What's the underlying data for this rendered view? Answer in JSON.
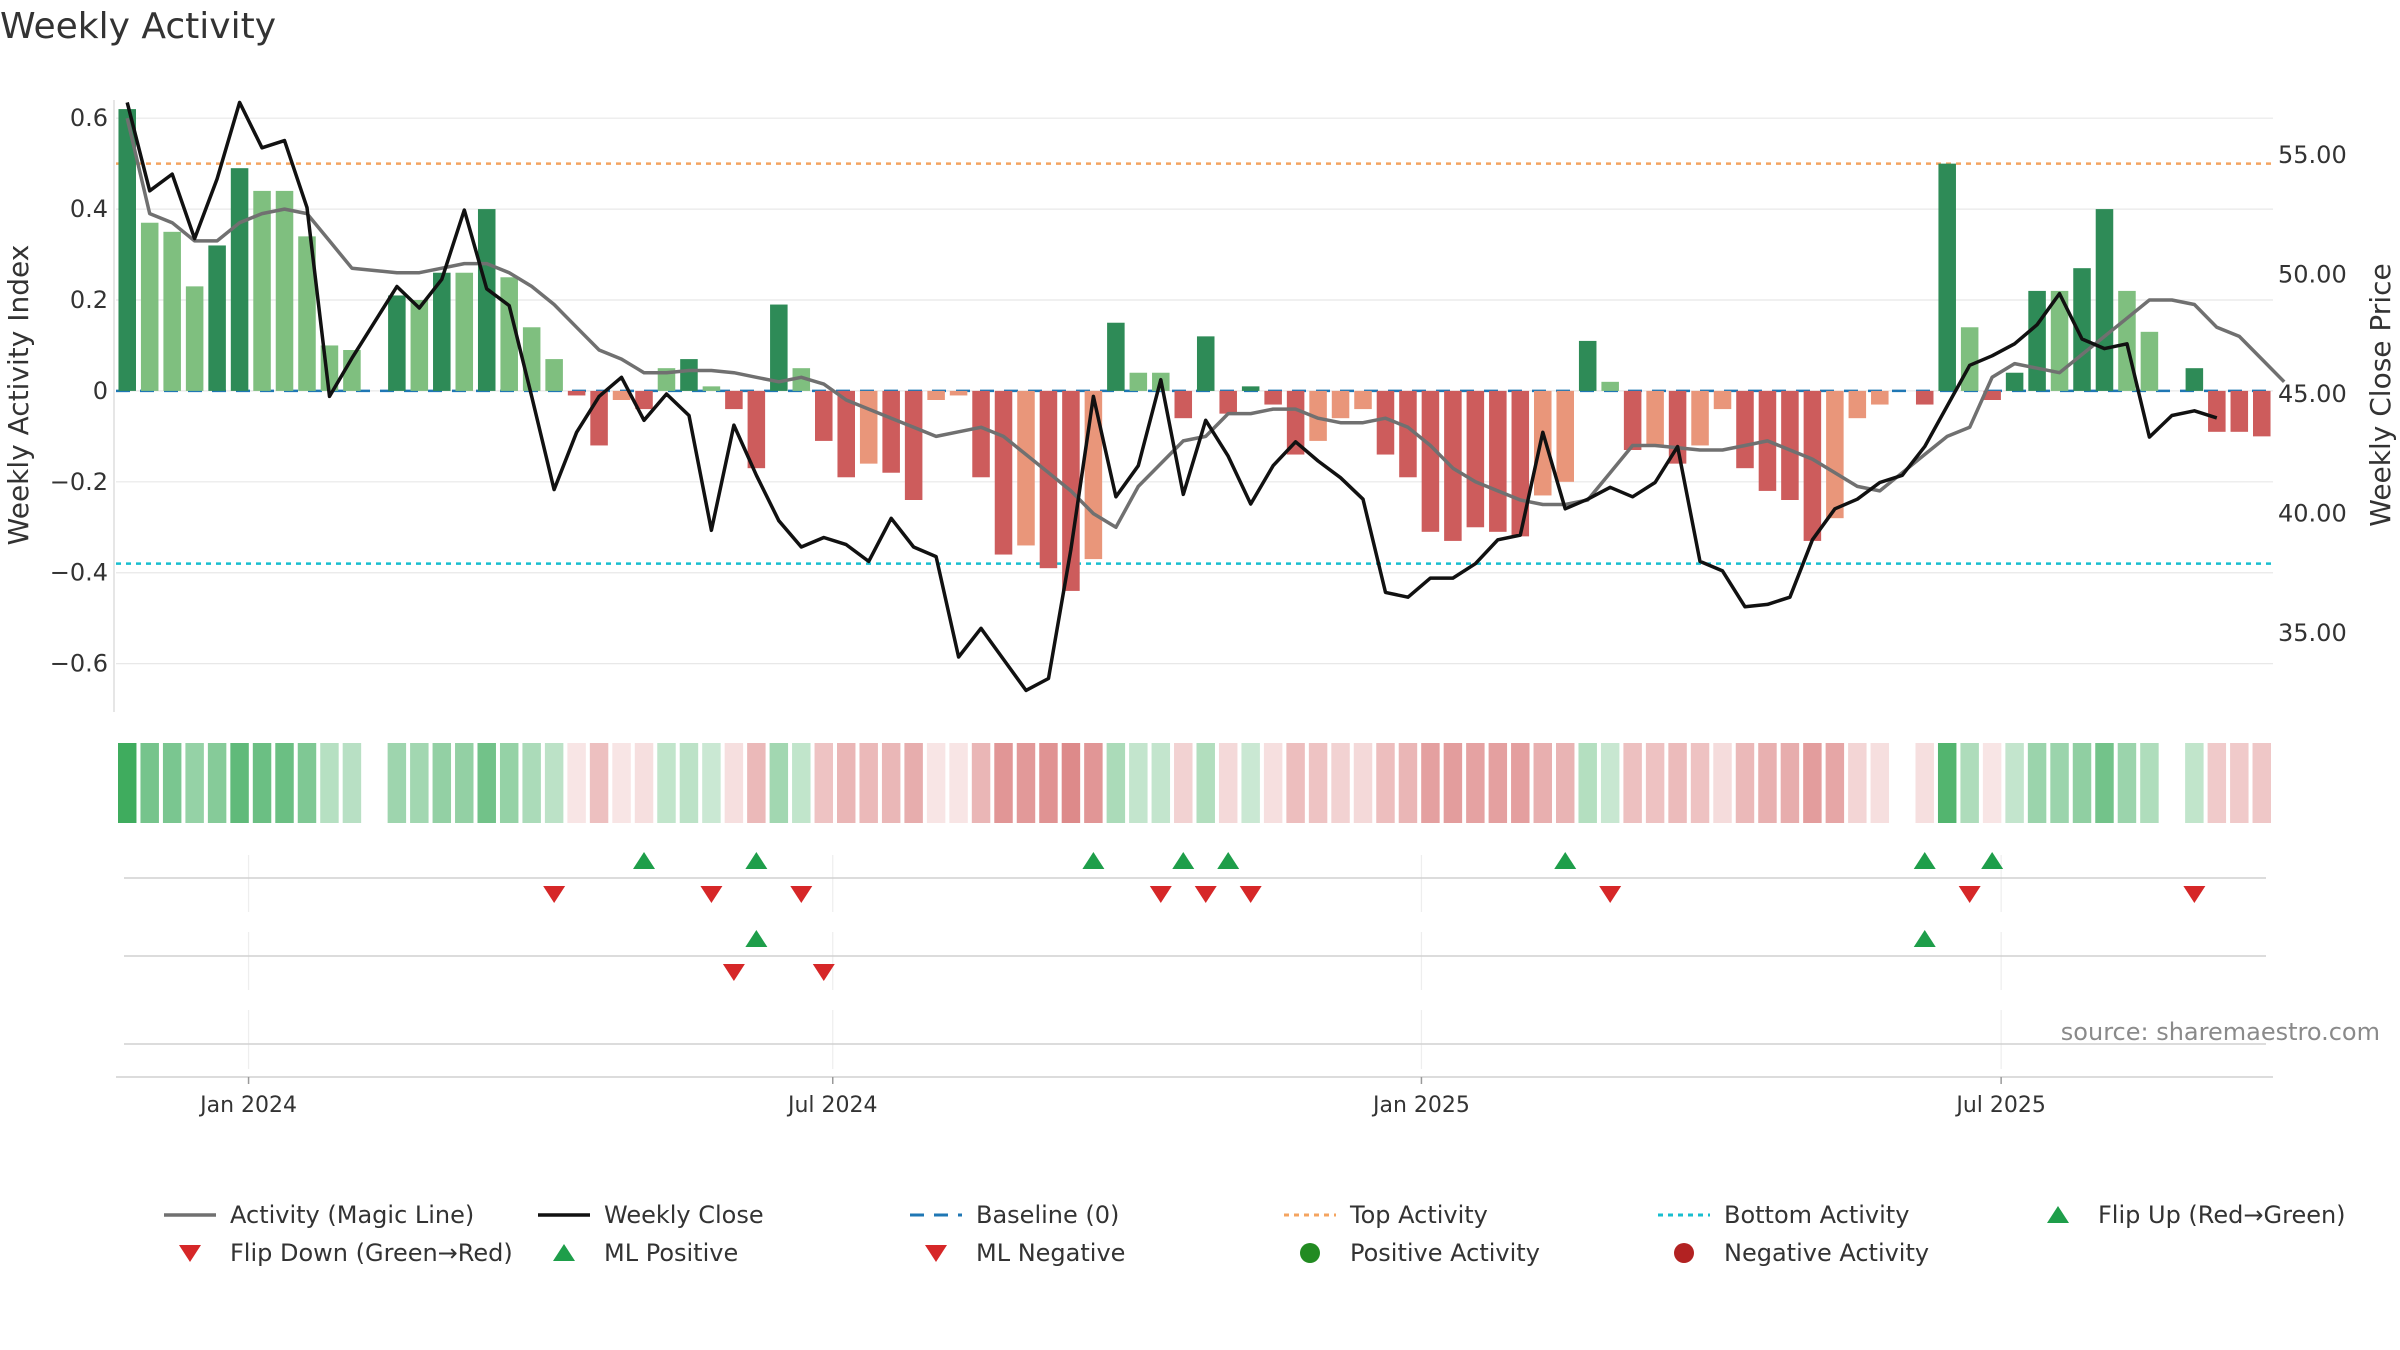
{
  "title": "Weekly Activity",
  "colors": {
    "strong_green": "#2e8b57",
    "light_green": "#7fbf7f",
    "strong_red": "#cd5c5c",
    "light_red": "#e9967a",
    "magic_line": "#707070",
    "close_line": "#111111",
    "baseline": "#1f77b4",
    "top": "#f4a460",
    "bottom": "#17becf",
    "marker_green": "#1e9e4a",
    "marker_red": "#d62728"
  },
  "chart_data": {
    "type": "bar",
    "title": "Weekly Activity",
    "ylabel": "Weekly Activity Index",
    "y2label": "Weekly Close Price",
    "ylim": [
      -0.68,
      0.64
    ],
    "y2lim": [
      32.2,
      57.3
    ],
    "yticks": [
      0.6,
      0.4,
      0.2,
      0,
      -0.2,
      -0.4,
      -0.6
    ],
    "ytick_labels": [
      "0.6",
      "0.4",
      "0.2",
      "0",
      "−0.2",
      "−0.4",
      "−0.6"
    ],
    "y2ticks": [
      55,
      50,
      45,
      40,
      35
    ],
    "y2tick_labels": [
      "55.00",
      "50.00",
      "45.00",
      "40.00",
      "35.00"
    ],
    "xticks": [
      5.4,
      31.4,
      57.6,
      83.4
    ],
    "xtick_labels": [
      "Jan 2024",
      "Jul 2024",
      "Jan 2025",
      "Jul 2025"
    ],
    "top_activity": 0.5,
    "bottom_activity": -0.38,
    "baseline": 0,
    "activity": [
      0.62,
      0.37,
      0.35,
      0.23,
      0.32,
      0.49,
      0.44,
      0.44,
      0.34,
      0.1,
      0.09,
      null,
      0.21,
      0.2,
      0.26,
      0.26,
      0.4,
      0.25,
      0.14,
      0.07,
      -0.01,
      -0.12,
      -0.02,
      -0.04,
      0.05,
      0.07,
      0.01,
      -0.04,
      -0.17,
      0.19,
      0.05,
      -0.11,
      -0.19,
      -0.16,
      -0.18,
      -0.24,
      -0.02,
      -0.01,
      -0.19,
      -0.36,
      -0.34,
      -0.39,
      -0.44,
      -0.37,
      0.15,
      0.04,
      0.04,
      -0.06,
      0.12,
      -0.05,
      0.01,
      -0.03,
      -0.14,
      -0.11,
      -0.06,
      -0.04,
      -0.14,
      -0.19,
      -0.31,
      -0.33,
      -0.3,
      -0.31,
      -0.32,
      -0.23,
      -0.2,
      0.11,
      0.02,
      -0.13,
      -0.12,
      -0.16,
      -0.12,
      -0.04,
      -0.17,
      -0.22,
      -0.24,
      -0.33,
      -0.28,
      -0.06,
      -0.03,
      null,
      -0.03,
      0.5,
      0.14,
      -0.02,
      0.04,
      0.22,
      0.22,
      0.27,
      0.4,
      0.22,
      0.13,
      null,
      0.05,
      -0.09,
      -0.09,
      -0.1
    ],
    "bar_shade": [
      "s",
      "l",
      "l",
      "l",
      "s",
      "s",
      "l",
      "l",
      "l",
      "l",
      "l",
      "n",
      "s",
      "l",
      "s",
      "l",
      "s",
      "l",
      "l",
      "l",
      "s",
      "s",
      "l",
      "s",
      "l",
      "s",
      "l",
      "s",
      "s",
      "s",
      "l",
      "s",
      "s",
      "l",
      "s",
      "s",
      "l",
      "l",
      "s",
      "s",
      "l",
      "s",
      "s",
      "l",
      "s",
      "l",
      "l",
      "s",
      "s",
      "s",
      "s",
      "s",
      "s",
      "l",
      "l",
      "l",
      "s",
      "s",
      "s",
      "s",
      "s",
      "s",
      "s",
      "l",
      "l",
      "s",
      "l",
      "s",
      "l",
      "s",
      "l",
      "l",
      "s",
      "s",
      "s",
      "s",
      "l",
      "l",
      "l",
      "n",
      "s",
      "s",
      "l",
      "s",
      "s",
      "s",
      "l",
      "s",
      "s",
      "l",
      "l",
      "n",
      "s",
      "s",
      "s",
      "s"
    ],
    "magic_line": [
      0.6,
      0.39,
      0.37,
      0.33,
      0.33,
      0.37,
      0.39,
      0.4,
      0.39,
      0.33,
      0.27,
      0.265,
      0.26,
      0.26,
      0.27,
      0.28,
      0.28,
      0.26,
      0.23,
      0.19,
      0.14,
      0.09,
      0.07,
      0.04,
      0.04,
      0.045,
      0.045,
      0.04,
      0.03,
      0.02,
      0.03,
      0.015,
      -0.02,
      -0.04,
      -0.06,
      -0.08,
      -0.1,
      -0.09,
      -0.08,
      -0.1,
      -0.14,
      -0.18,
      -0.22,
      -0.27,
      -0.3,
      -0.21,
      -0.16,
      -0.11,
      -0.1,
      -0.05,
      -0.05,
      -0.04,
      -0.04,
      -0.06,
      -0.07,
      -0.07,
      -0.06,
      -0.08,
      -0.12,
      -0.17,
      -0.2,
      -0.22,
      -0.24,
      -0.25,
      -0.25,
      -0.24,
      -0.18,
      -0.12,
      -0.12,
      -0.125,
      -0.13,
      -0.13,
      -0.12,
      -0.11,
      -0.13,
      -0.15,
      -0.18,
      -0.21,
      -0.22,
      -0.18,
      -0.14,
      -0.1,
      -0.08,
      0.03,
      0.06,
      0.05,
      0.04,
      0.08,
      0.12,
      0.16,
      0.2,
      0.2,
      0.19,
      0.14,
      0.12,
      0.07,
      0.02
    ],
    "weekly_close": [
      57.2,
      53.5,
      54.2,
      51.5,
      54.0,
      57.2,
      55.3,
      55.6,
      52.8,
      44.9,
      46.5,
      48.0,
      49.5,
      48.6,
      49.8,
      52.7,
      49.4,
      48.7,
      44.9,
      41.0,
      43.4,
      44.9,
      45.7,
      43.9,
      45.0,
      44.1,
      39.3,
      43.7,
      41.6,
      39.7,
      38.6,
      39.0,
      38.7,
      38.0,
      39.8,
      38.6,
      38.2,
      34.0,
      35.2,
      33.9,
      32.6,
      33.1,
      38.5,
      44.9,
      40.7,
      42.0,
      45.6,
      40.8,
      43.9,
      42.4,
      40.4,
      42.0,
      43.0,
      42.2,
      41.5,
      40.6,
      36.7,
      36.5,
      37.3,
      37.3,
      37.9,
      38.9,
      39.1,
      43.4,
      40.2,
      40.6,
      41.1,
      40.7,
      41.3,
      42.8,
      38.0,
      37.6,
      36.1,
      36.2,
      36.5,
      38.9,
      40.2,
      40.6,
      41.3,
      41.6,
      42.8,
      44.5,
      46.2,
      46.6,
      47.1,
      47.9,
      49.2,
      47.3,
      46.9,
      47.1,
      43.2,
      44.1,
      44.3,
      44.0
    ],
    "heat_strip": [
      0.87,
      0.62,
      0.6,
      0.48,
      0.55,
      0.72,
      0.67,
      0.67,
      0.58,
      0.33,
      0.32,
      null,
      0.44,
      0.42,
      0.49,
      0.49,
      0.64,
      0.48,
      0.38,
      0.3,
      -0.12,
      -0.36,
      -0.15,
      -0.18,
      0.28,
      0.3,
      0.24,
      -0.18,
      -0.4,
      0.42,
      0.28,
      -0.34,
      -0.42,
      -0.4,
      -0.41,
      -0.47,
      -0.12,
      -0.12,
      -0.42,
      -0.6,
      -0.58,
      -0.62,
      -0.67,
      -0.6,
      0.38,
      0.27,
      0.27,
      -0.26,
      0.35,
      -0.22,
      0.24,
      -0.18,
      -0.37,
      -0.34,
      -0.26,
      -0.22,
      -0.37,
      -0.42,
      -0.54,
      -0.56,
      -0.53,
      -0.54,
      -0.55,
      -0.46,
      -0.43,
      0.34,
      0.25,
      -0.36,
      -0.35,
      -0.39,
      -0.35,
      -0.2,
      -0.4,
      -0.45,
      -0.47,
      -0.56,
      -0.51,
      -0.24,
      -0.18,
      null,
      -0.18,
      0.78,
      0.37,
      -0.15,
      0.27,
      0.45,
      0.45,
      0.5,
      0.63,
      0.45,
      0.36,
      null,
      0.28,
      -0.3,
      -0.3,
      -0.32
    ],
    "flip_up": [
      23,
      28,
      43,
      47,
      49,
      64,
      80,
      83
    ],
    "flip_down": [
      19,
      26,
      30,
      46,
      48,
      50,
      66,
      82,
      92
    ],
    "ml_positive": [
      28,
      80
    ],
    "ml_negative": [
      27,
      31
    ],
    "positive_activity": [],
    "negative_activity": [],
    "source": "source: sharemaestro.com"
  },
  "legend": [
    {
      "label": "Activity (Magic Line)",
      "symbol": "line-gray"
    },
    {
      "label": "Weekly Close",
      "symbol": "line-black"
    },
    {
      "label": "Baseline (0)",
      "symbol": "dash-blue"
    },
    {
      "label": "Top Activity",
      "symbol": "dot-orange"
    },
    {
      "label": "Bottom Activity",
      "symbol": "dot-cyan"
    },
    {
      "label": "Flip Up (Red→Green)",
      "symbol": "tri-up-green"
    },
    {
      "label": "Flip Down (Green→Red)",
      "symbol": "tri-down-red"
    },
    {
      "label": "ML Positive",
      "symbol": "tri-up-green"
    },
    {
      "label": "ML Negative",
      "symbol": "tri-down-red"
    },
    {
      "label": "Positive Activity",
      "symbol": "circle-green"
    },
    {
      "label": "Negative Activity",
      "symbol": "circle-red"
    }
  ]
}
